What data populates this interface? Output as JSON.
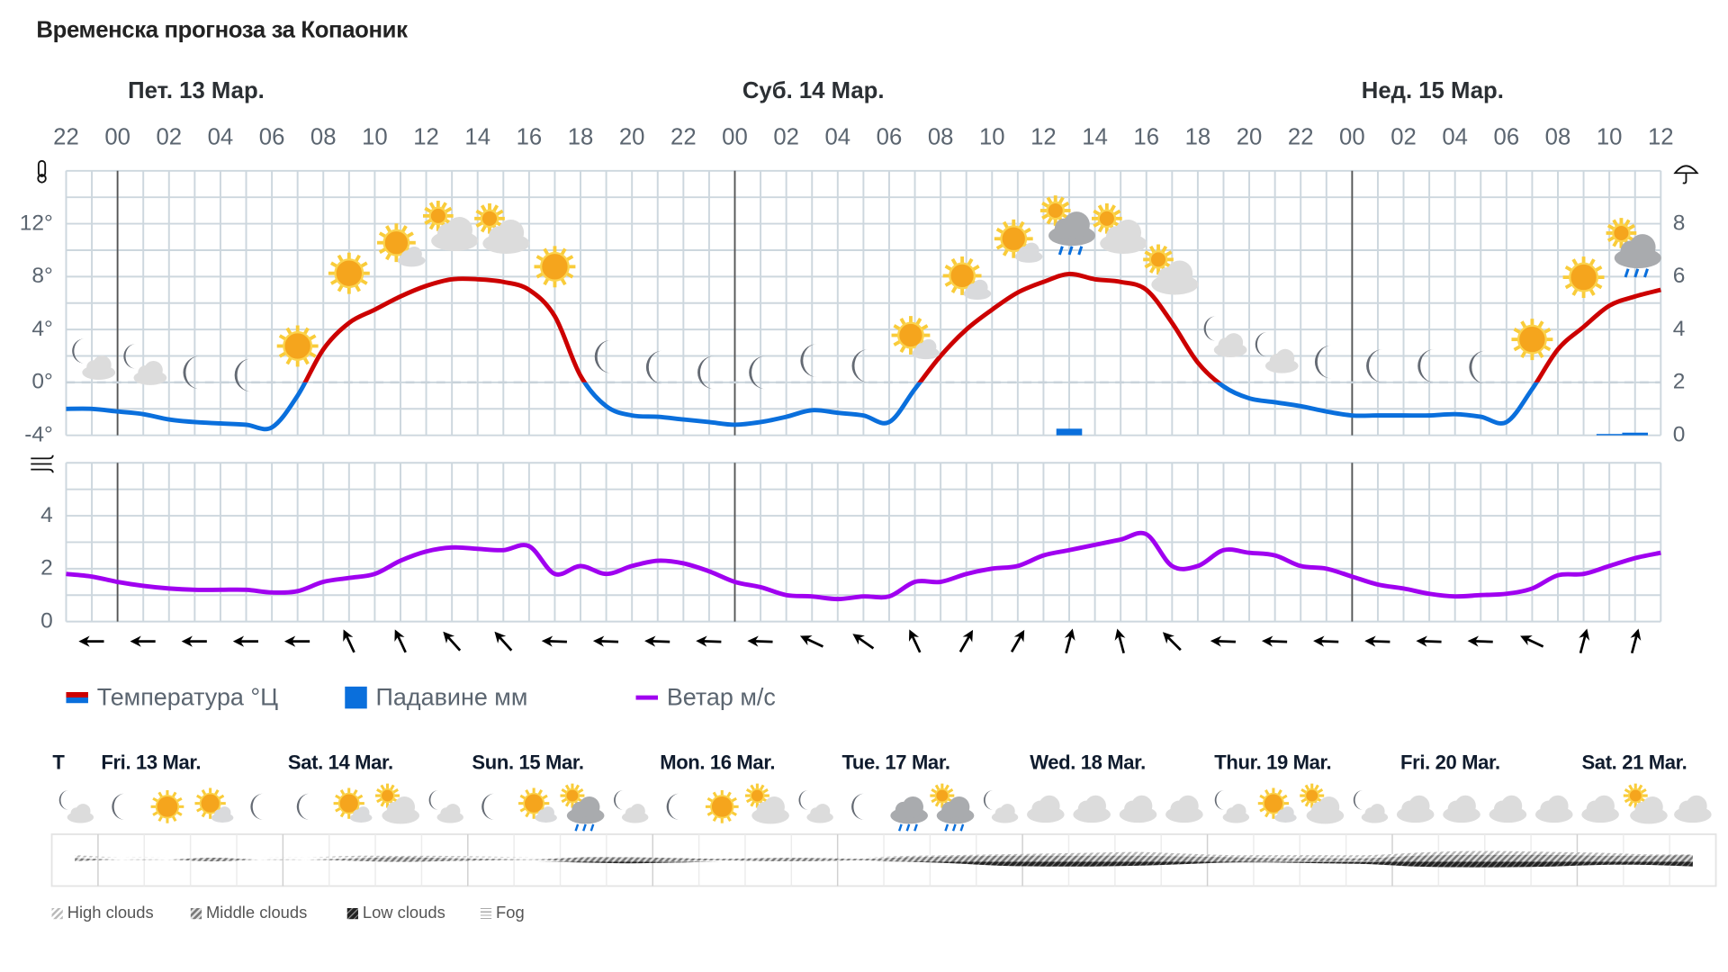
{
  "title": "Временска прогноза за Копаоник",
  "days": [
    "Пет. 13 Мар.",
    "Суб. 14 Мар.",
    "Нед. 15 Мар."
  ],
  "hour_labels": [
    "22",
    "00",
    "02",
    "04",
    "06",
    "08",
    "10",
    "12",
    "14",
    "16",
    "18",
    "20",
    "22",
    "00",
    "02",
    "04",
    "06",
    "08",
    "10",
    "12",
    "14",
    "16",
    "18",
    "20",
    "22",
    "00",
    "02",
    "04",
    "06",
    "08",
    "10",
    "12"
  ],
  "legend": {
    "temperature": "Температура °Ц",
    "precipitation": "Падавине мм",
    "wind": "Ветар м/с"
  },
  "colors": {
    "temp_above_zero": "#cc0000",
    "temp_below_zero": "#0a6fdc",
    "precip": "#0a6fdc",
    "wind": "#a000f0",
    "grid": "#cdd7de"
  },
  "icons": {
    "temp_axis": "thermometer-icon",
    "precip_axis": "umbrella-icon",
    "wind_axis": "wind-icon"
  },
  "chart_data": [
    {
      "type": "line",
      "name": "temperature",
      "x_start": "Thu 22:00",
      "x_step_hours": 1,
      "y_unit": "°",
      "yticks": [
        "12°",
        "8°",
        "4°",
        "0°",
        "-4°"
      ],
      "ylim": [
        -4,
        16
      ],
      "values": [
        -2.0,
        -2.0,
        -2.2,
        -2.4,
        -2.8,
        -3.0,
        -3.1,
        -3.2,
        -3.4,
        -1.0,
        2.5,
        4.5,
        5.5,
        6.5,
        7.3,
        7.8,
        7.8,
        7.6,
        7.0,
        5.0,
        0.5,
        -1.8,
        -2.5,
        -2.6,
        -2.8,
        -3.0,
        -3.2,
        -3.0,
        -2.6,
        -2.1,
        -2.3,
        -2.5,
        -3.0,
        -0.5,
        2.0,
        4.0,
        5.5,
        6.8,
        7.6,
        8.2,
        7.8,
        7.6,
        7.0,
        4.5,
        1.5,
        -0.3,
        -1.2,
        -1.5,
        -1.8,
        -2.2,
        -2.5,
        -2.5,
        -2.5,
        -2.5,
        -2.4,
        -2.6,
        -3.0,
        -0.5,
        2.5,
        4.2,
        5.8,
        6.5,
        7.0
      ]
    },
    {
      "type": "bar",
      "name": "precipitation",
      "y_unit": "mm",
      "yticks": [
        "8",
        "6",
        "4",
        "2",
        "0"
      ],
      "ylim": [
        0,
        10
      ],
      "bars": [
        {
          "hour_index": 39,
          "value": 0.25
        },
        {
          "hour_index": 60,
          "value": 0.05
        },
        {
          "hour_index": 61,
          "value": 0.1
        }
      ]
    },
    {
      "type": "line",
      "name": "wind",
      "yticks": [
        "4",
        "2",
        "0"
      ],
      "ylim": [
        0,
        6
      ],
      "values": [
        1.8,
        1.7,
        1.5,
        1.35,
        1.25,
        1.2,
        1.2,
        1.2,
        1.1,
        1.15,
        1.5,
        1.65,
        1.8,
        2.3,
        2.65,
        2.8,
        2.75,
        2.7,
        2.85,
        1.8,
        2.1,
        1.8,
        2.1,
        2.3,
        2.2,
        1.9,
        1.5,
        1.3,
        1.0,
        0.95,
        0.85,
        0.95,
        0.95,
        1.5,
        1.5,
        1.8,
        2.0,
        2.1,
        2.5,
        2.7,
        2.9,
        3.1,
        3.3,
        2.1,
        2.1,
        2.7,
        2.6,
        2.5,
        2.1,
        2.0,
        1.7,
        1.4,
        1.25,
        1.05,
        0.95,
        1.0,
        1.05,
        1.25,
        1.75,
        1.8,
        2.1,
        2.4,
        2.6
      ],
      "direction_deg_every_2h": [
        270,
        270,
        270,
        270,
        270,
        335,
        335,
        318,
        318,
        272,
        272,
        272,
        272,
        272,
        295,
        305,
        335,
        30,
        30,
        15,
        345,
        315,
        272,
        272,
        272,
        272,
        272,
        272,
        295,
        15,
        15
      ]
    }
  ],
  "weather_icons_hourly": [
    "night-partly-cloudy",
    "night-partly-cloudy",
    "moon",
    "moon",
    "sun",
    "sun",
    "sun-cloud",
    "cloud-sun",
    "cloud-sun",
    "sun",
    "moon",
    "moon",
    "moon",
    "moon",
    "moon",
    "moon",
    "sun-cloud",
    "sun-cloud",
    "sun-cloud",
    "rain-cloud-sun",
    "cloud-sun",
    "cloud-sun",
    "night-partly-cloudy",
    "night-partly-cloudy",
    "moon",
    "moon",
    "moon",
    "moon",
    "sun",
    "sun",
    "rain-cloud-sun"
  ],
  "weekly": {
    "t_label": "T",
    "days": [
      "Fri. 13 Mar.",
      "Sat. 14 Mar.",
      "Sun. 15 Mar.",
      "Mon. 16 Mar.",
      "Tue. 17 Mar.",
      "Wed. 18 Mar.",
      "Thur. 19 Mar.",
      "Fri. 20 Mar.",
      "Sat. 21 Mar."
    ],
    "icons": [
      "night-partly-cloudy",
      "moon",
      "sun",
      "sun-cloud",
      "moon",
      "moon",
      "sun-cloud",
      "cloud-sun",
      "night-partly-cloudy",
      "moon",
      "sun-cloud",
      "rain-cloud-sun",
      "night-partly-cloudy",
      "moon",
      "sun",
      "cloud-sun",
      "night-partly-cloudy",
      "moon",
      "rain-cloud",
      "rain-cloud-sun",
      "night-partly-cloudy",
      "cloud",
      "cloud",
      "cloud",
      "cloud",
      "night-partly-cloudy",
      "sun-cloud",
      "cloud-sun",
      "night-partly-cloudy",
      "cloud",
      "cloud",
      "cloud",
      "cloud",
      "cloud",
      "cloud-sun",
      "cloud"
    ],
    "high_clouds": [
      15,
      0,
      0,
      0,
      0,
      0,
      10,
      10,
      10,
      5,
      0,
      0,
      0,
      0,
      0,
      0,
      0,
      0,
      10,
      15,
      20,
      25,
      30,
      35,
      25,
      15,
      15,
      15,
      15,
      30,
      40,
      40,
      35,
      30,
      20,
      20
    ],
    "middle_clouds": [
      10,
      0,
      0,
      12,
      0,
      0,
      8,
      15,
      10,
      5,
      2,
      15,
      15,
      10,
      5,
      10,
      10,
      5,
      15,
      20,
      25,
      25,
      25,
      25,
      20,
      15,
      10,
      10,
      10,
      25,
      30,
      30,
      30,
      25,
      25,
      30
    ],
    "low_clouds": [
      0,
      0,
      0,
      0,
      0,
      0,
      0,
      0,
      0,
      0,
      0,
      5,
      10,
      5,
      0,
      0,
      0,
      0,
      0,
      10,
      25,
      30,
      30,
      25,
      15,
      5,
      5,
      10,
      15,
      30,
      35,
      35,
      30,
      20,
      20,
      30
    ],
    "legend": [
      "High clouds",
      "Middle clouds",
      "Low clouds",
      "Fog"
    ]
  }
}
